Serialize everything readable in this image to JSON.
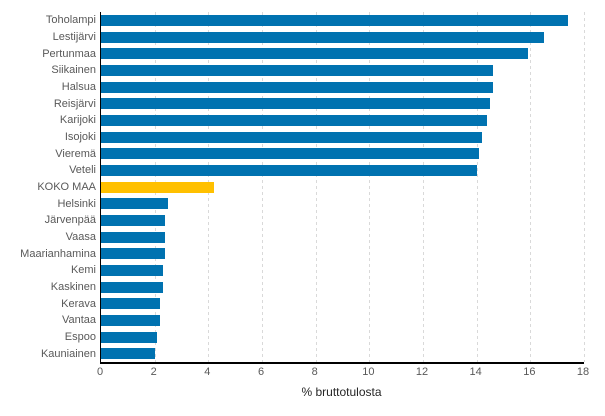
{
  "chart_data": {
    "type": "bar",
    "orientation": "horizontal",
    "title": "",
    "xlabel": "% bruttotulosta",
    "ylabel": "",
    "xlim": [
      0,
      18
    ],
    "x_ticks": [
      0,
      2,
      4,
      6,
      8,
      10,
      12,
      14,
      16,
      18
    ],
    "grid": "vertical dashed gridlines every 2 units",
    "legend": "none",
    "categories": [
      "Toholampi",
      "Lestijärvi",
      "Pertunmaa",
      "Siikainen",
      "Halsua",
      "Reisjärvi",
      "Karijoki",
      "Isojoki",
      "Vieremä",
      "Veteli",
      "KOKO MAA",
      "Helsinki",
      "Järvenpää",
      "Vaasa",
      "Maarianhamina",
      "Kemi",
      "Kaskinen",
      "Kerava",
      "Vantaa",
      "Espoo",
      "Kauniainen"
    ],
    "values": [
      17.4,
      16.5,
      15.9,
      14.6,
      14.6,
      14.5,
      14.4,
      14.2,
      14.1,
      14.0,
      4.2,
      2.5,
      2.4,
      2.4,
      2.4,
      2.3,
      2.3,
      2.2,
      2.2,
      2.1,
      2.0
    ],
    "highlight_category": "KOKO MAA",
    "colors": {
      "bar": "#0072b0",
      "highlight": "#ffc000",
      "axis": "#000000",
      "grid": "#d9d9d9",
      "category_label_text": "#595959",
      "tick_label_text": "#595959",
      "axis_title_text": "#262626"
    }
  }
}
